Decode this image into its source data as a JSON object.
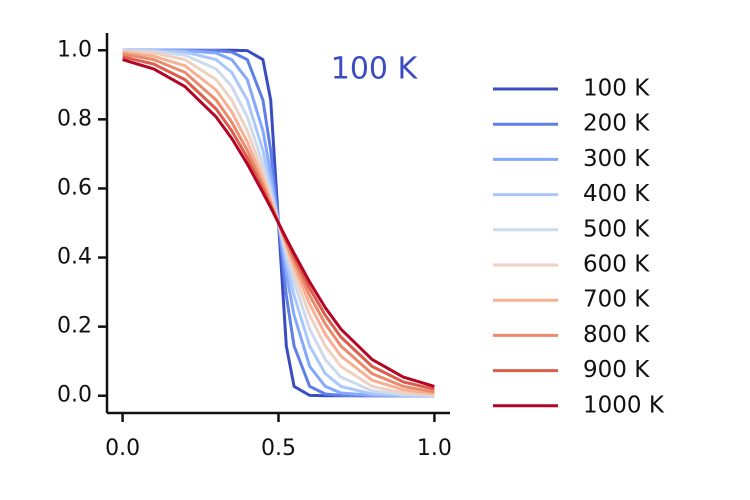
{
  "chart_data": {
    "type": "line",
    "annotation": "100 K",
    "x": [
      0,
      0.1,
      0.2,
      0.3,
      0.35,
      0.4,
      0.45,
      0.475,
      0.5,
      0.525,
      0.55,
      0.6,
      0.65,
      0.7,
      0.8,
      0.9,
      1.0
    ],
    "series": [
      {
        "name": "100 K",
        "color": "#3b4cc0",
        "values": [
          1,
          1,
          1,
          1,
          1,
          0.999,
          0.973,
          0.856,
          0.5,
          0.144,
          0.027,
          0.001,
          0,
          0,
          0,
          0,
          0
        ]
      },
      {
        "name": "200 K",
        "color": "#5f7fe8",
        "values": [
          1,
          1,
          1,
          0.999,
          0.995,
          0.973,
          0.856,
          0.71,
          0.5,
          0.29,
          0.144,
          0.027,
          0.005,
          0.001,
          0,
          0,
          0
        ]
      },
      {
        "name": "300 K",
        "color": "#85a8fc",
        "values": [
          1,
          1,
          0.999,
          0.992,
          0.973,
          0.915,
          0.767,
          0.645,
          0.5,
          0.355,
          0.233,
          0.085,
          0.027,
          0.008,
          0.001,
          0,
          0
        ]
      },
      {
        "name": "400 K",
        "color": "#aac7fd",
        "values": [
          1,
          0.999,
          0.995,
          0.973,
          0.936,
          0.856,
          0.71,
          0.61,
          0.5,
          0.39,
          0.29,
          0.144,
          0.064,
          0.027,
          0.005,
          0.001,
          0
        ]
      },
      {
        "name": "500 K",
        "color": "#cdd9ec",
        "values": [
          0.999,
          0.997,
          0.986,
          0.946,
          0.895,
          0.807,
          0.671,
          0.588,
          0.5,
          0.412,
          0.329,
          0.193,
          0.105,
          0.054,
          0.014,
          0.003,
          0.001
        ]
      },
      {
        "name": "600 K",
        "color": "#edd1c2",
        "values": [
          0.997,
          0.992,
          0.973,
          0.915,
          0.856,
          0.767,
          0.645,
          0.574,
          0.5,
          0.426,
          0.355,
          0.233,
          0.144,
          0.085,
          0.027,
          0.008,
          0.003
        ]
      },
      {
        "name": "700 K",
        "color": "#f7b093",
        "values": [
          0.994,
          0.983,
          0.955,
          0.885,
          0.822,
          0.735,
          0.625,
          0.563,
          0.5,
          0.437,
          0.375,
          0.265,
          0.178,
          0.115,
          0.045,
          0.017,
          0.006
        ]
      },
      {
        "name": "800 K",
        "color": "#ec8a6e",
        "values": [
          0.989,
          0.973,
          0.936,
          0.856,
          0.792,
          0.71,
          0.61,
          0.556,
          0.5,
          0.444,
          0.39,
          0.29,
          0.208,
          0.144,
          0.064,
          0.027,
          0.011
        ]
      },
      {
        "name": "900 K",
        "color": "#dc5d4a",
        "values": [
          0.981,
          0.96,
          0.915,
          0.83,
          0.767,
          0.689,
          0.598,
          0.549,
          0.5,
          0.451,
          0.402,
          0.311,
          0.233,
          0.17,
          0.085,
          0.04,
          0.019
        ]
      },
      {
        "name": "1000 K",
        "color": "#b40426",
        "values": [
          0.973,
          0.946,
          0.895,
          0.807,
          0.745,
          0.671,
          0.588,
          0.545,
          0.5,
          0.455,
          0.412,
          0.329,
          0.255,
          0.193,
          0.105,
          0.054,
          0.027
        ]
      }
    ],
    "xlim": [
      -0.05,
      1.05
    ],
    "ylim": [
      -0.05,
      1.05
    ],
    "xticks": [
      {
        "value": 0,
        "label": "0.0"
      },
      0.5,
      {
        "value": 1,
        "label": "1.0"
      }
    ],
    "yticks": [
      {
        "value": 0,
        "label": "0.0"
      },
      0.2,
      0.4,
      0.6,
      0.8,
      {
        "value": 1,
        "label": "1.0"
      }
    ],
    "grid": false,
    "legend": "right"
  }
}
